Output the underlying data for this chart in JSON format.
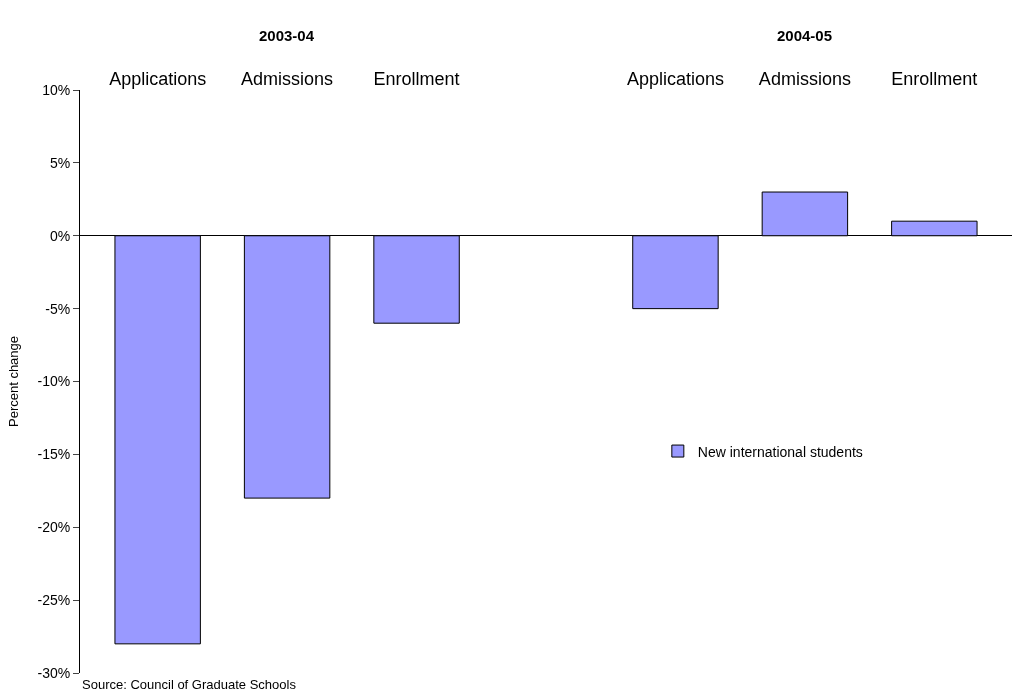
{
  "chart_data": {
    "type": "bar",
    "categories": [
      "Applications",
      "Admissions",
      "Enrollment",
      null,
      "Applications",
      "Admissions",
      "Enrollment"
    ],
    "series": [
      {
        "name": "New international students",
        "color": "#9999ff",
        "values": [
          -28,
          -18,
          -6,
          null,
          -5,
          3,
          1
        ]
      }
    ],
    "ylabel": "Percent change",
    "ylim": [
      -30,
      10
    ],
    "yticks": [
      {
        "value": -30,
        "label": "-30%"
      },
      {
        "value": -25,
        "label": "-25%"
      },
      {
        "value": -20,
        "label": "-20%"
      },
      {
        "value": -15,
        "label": "-15%"
      },
      {
        "value": -10,
        "label": "-10%"
      },
      {
        "value": -5,
        "label": "-5%"
      },
      {
        "value": 0,
        "label": "0%"
      },
      {
        "value": 5,
        "label": "5%"
      },
      {
        "value": 10,
        "label": "10%"
      }
    ],
    "annotations": [
      "2003-04",
      "2004-05",
      "Source: Council of Graduate Schools"
    ],
    "legend": "right"
  }
}
